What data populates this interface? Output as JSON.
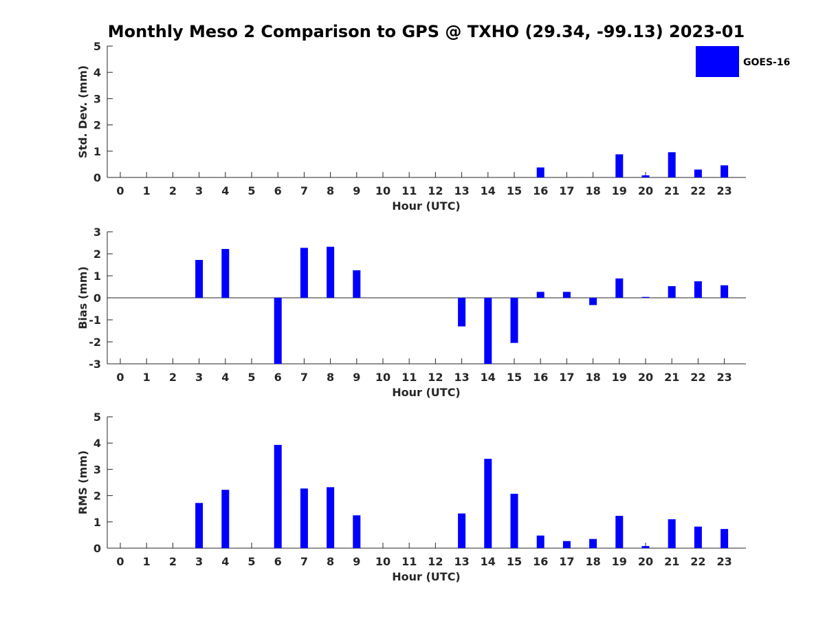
{
  "colors": {
    "bar": "#0000ff",
    "axis": "#262626",
    "background": "#ffffff"
  },
  "chart_data": {
    "title": "Monthly Meso 2 Comparison to GPS @ TXHO (29.34, -99.13) 2023-01",
    "legend": {
      "position": "top-right",
      "entries": [
        "GOES-16"
      ]
    },
    "panels": [
      {
        "type": "bar",
        "series_name": "GOES-16",
        "xlabel": "Hour (UTC)",
        "ylabel": "Std. Dev. (mm)",
        "ylim": [
          0,
          5
        ],
        "yticks": [
          0,
          1,
          2,
          3,
          4,
          5
        ],
        "categories": [
          "0",
          "1",
          "2",
          "3",
          "4",
          "5",
          "6",
          "7",
          "8",
          "9",
          "10",
          "11",
          "12",
          "13",
          "14",
          "15",
          "16",
          "17",
          "18",
          "19",
          "20",
          "21",
          "22",
          "23"
        ],
        "values": [
          null,
          null,
          null,
          null,
          null,
          null,
          null,
          null,
          null,
          null,
          null,
          null,
          null,
          null,
          null,
          null,
          0.38,
          null,
          null,
          0.88,
          0.08,
          0.96,
          0.3,
          0.46
        ]
      },
      {
        "type": "bar",
        "series_name": "GOES-16",
        "xlabel": "Hour (UTC)",
        "ylabel": "Bias (mm)",
        "ylim": [
          -3,
          3
        ],
        "yticks": [
          -3,
          -2,
          -1,
          0,
          1,
          2,
          3
        ],
        "categories": [
          "0",
          "1",
          "2",
          "3",
          "4",
          "5",
          "6",
          "7",
          "8",
          "9",
          "10",
          "11",
          "12",
          "13",
          "14",
          "15",
          "16",
          "17",
          "18",
          "19",
          "20",
          "21",
          "22",
          "23"
        ],
        "values": [
          null,
          null,
          null,
          1.72,
          2.22,
          null,
          -3.0,
          2.27,
          2.32,
          1.25,
          null,
          null,
          null,
          -1.3,
          -3.0,
          -2.05,
          0.27,
          0.27,
          -0.33,
          0.88,
          0.04,
          0.53,
          0.75,
          0.57
        ]
      },
      {
        "type": "bar",
        "series_name": "GOES-16",
        "xlabel": "Hour (UTC)",
        "ylabel": "RMS (mm)",
        "ylim": [
          0,
          5
        ],
        "yticks": [
          0,
          1,
          2,
          3,
          4,
          5
        ],
        "categories": [
          "0",
          "1",
          "2",
          "3",
          "4",
          "5",
          "6",
          "7",
          "8",
          "9",
          "10",
          "11",
          "12",
          "13",
          "14",
          "15",
          "16",
          "17",
          "18",
          "19",
          "20",
          "21",
          "22",
          "23"
        ],
        "values": [
          null,
          null,
          null,
          1.72,
          2.22,
          null,
          3.93,
          2.27,
          2.32,
          1.25,
          null,
          null,
          null,
          1.32,
          3.4,
          2.07,
          0.48,
          0.27,
          0.35,
          1.23,
          0.08,
          1.1,
          0.82,
          0.73
        ]
      }
    ]
  }
}
